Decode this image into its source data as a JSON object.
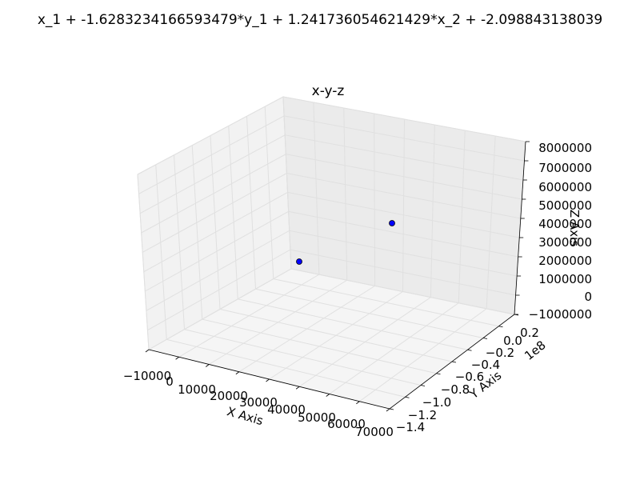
{
  "suptitle": "x_1 + -1.6283234166593479*y_1 + 1.241736054621429*x_2 + -2.098843138039",
  "chart_data": {
    "type": "scatter",
    "title": "x-y-z",
    "xlabel": "X Axis",
    "ylabel": "Y Axis",
    "zlabel": "Z Axis",
    "x_ticks": [
      "−10000",
      "0",
      "10000",
      "20000",
      "30000",
      "40000",
      "50000",
      "60000",
      "70000"
    ],
    "y_ticks": [
      "−1.4",
      "−1.2",
      "−1.0",
      "−0.8",
      "−0.6",
      "−0.4",
      "−0.2",
      "0.0",
      "0.2"
    ],
    "y_offset": "1e8",
    "z_ticks": [
      "−1000000",
      "0",
      "1000000",
      "2000000",
      "3000000",
      "4000000",
      "5000000",
      "6000000",
      "7000000",
      "8000000"
    ],
    "xlim": [
      -10000,
      70000
    ],
    "ylim": [
      -140000000,
      20000000
    ],
    "zlim": [
      -1000000,
      8000000
    ],
    "grid": true,
    "marker_color": "#0000ff",
    "points": [
      {
        "x": 0,
        "y": 0,
        "z": 0
      },
      {
        "x": 60000,
        "y": -120000000,
        "z": 7000000
      }
    ]
  }
}
